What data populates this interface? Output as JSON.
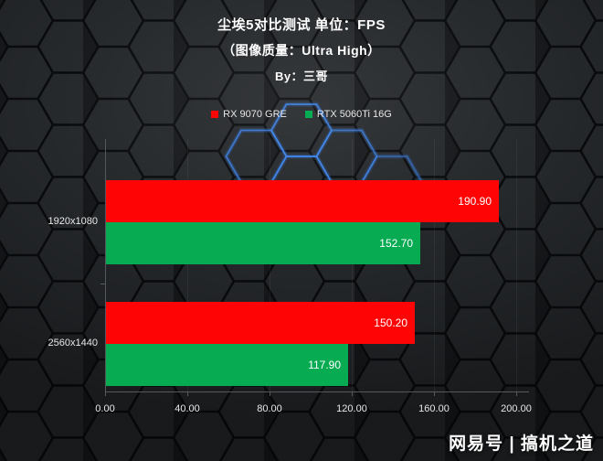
{
  "title": {
    "line1": "尘埃5对比测试 单位：FPS",
    "line2": "（图像质量：Ultra High）",
    "line3": "By：三哥"
  },
  "chart_data": {
    "type": "bar",
    "orientation": "horizontal",
    "title": "尘埃5对比测试 单位：FPS（图像质量：Ultra High）By：三哥",
    "categories": [
      "1920x1080",
      "2560x1440"
    ],
    "series": [
      {
        "name": "RX 9070 GRE",
        "color": "#fe0404",
        "values": [
          190.9,
          150.2
        ]
      },
      {
        "name": "RTX 5060Ti 16G",
        "color": "#07ab52",
        "values": [
          152.7,
          117.9
        ]
      }
    ],
    "value_labels": [
      [
        "190.90",
        "150.20"
      ],
      [
        "152.70",
        "117.90"
      ]
    ],
    "xlabel": "",
    "ylabel": "",
    "xlim": [
      0,
      200
    ],
    "x_ticks": [
      0,
      40,
      80,
      120,
      160,
      200
    ],
    "x_tick_labels": [
      "0.00",
      "40.00",
      "80.00",
      "120.00",
      "160.00",
      "200.00"
    ],
    "legend_position": "top-center",
    "grid": "faint-vertical",
    "value_labels_inside_bars": true
  },
  "watermark": "网易号 | 搞机之道",
  "colors": {
    "background": "#17191c",
    "hexagon_fill": "#26292c",
    "hexagon_edge": "#0a0b0d",
    "hexagon_glow_blue": "#2e77e8",
    "bar_red": "#fe0404",
    "bar_green": "#07ab52",
    "text": "#ffffff",
    "axis": "#55585c"
  }
}
